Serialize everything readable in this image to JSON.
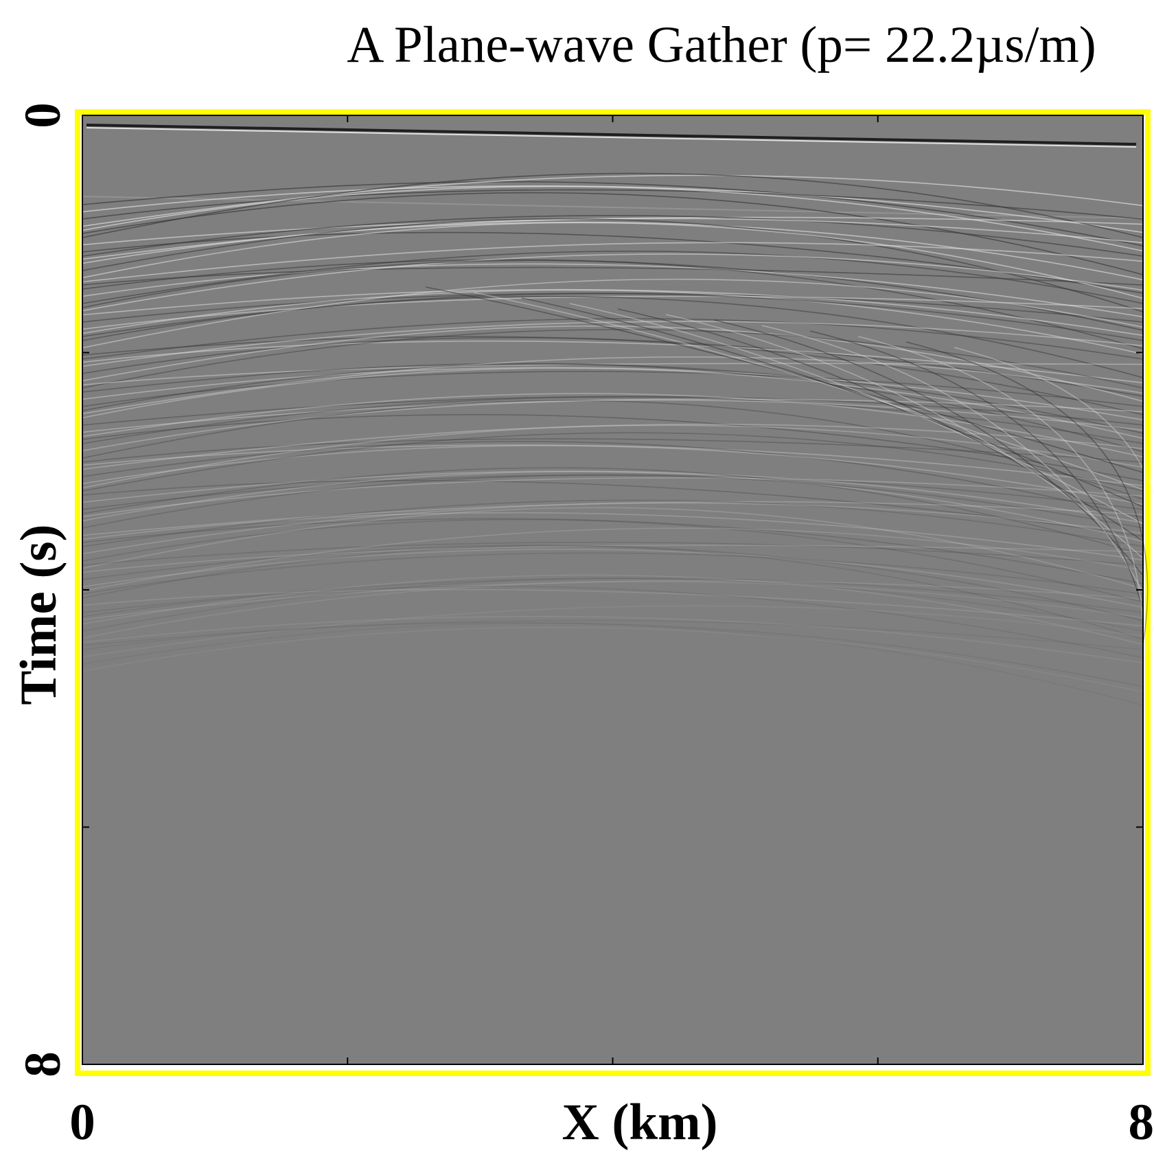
{
  "chart_data": {
    "type": "image",
    "title": "A Plane-wave Gather (p= 22.2µs/m)",
    "xlabel": "X (km)",
    "ylabel": "Time (s)",
    "xlim": [
      0,
      8
    ],
    "ylim": [
      8,
      0
    ],
    "xticks": [
      0,
      8
    ],
    "yticks": [
      0,
      8
    ],
    "minor_xticks": [
      2,
      4,
      6
    ],
    "minor_yticks": [
      2,
      4,
      6
    ],
    "frame_color": "#ffff00",
    "background_color": "#7f7f7f"
  }
}
